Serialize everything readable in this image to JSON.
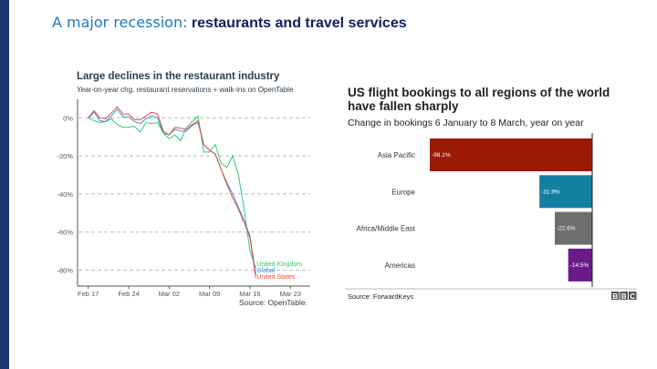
{
  "slide": {
    "title_prefix": "A major recession:",
    "title_main": "restaurants and travel services"
  },
  "chart_data": [
    {
      "type": "line",
      "title": "Large declines in the restaurant industry",
      "subtitle": "Year-on-year chg. restaurant reservations + walk-ins on OpenTable",
      "source": "Source: OpenTable.",
      "x_start": "Feb 17",
      "x_ticks": [
        "Feb 17",
        "Feb 24",
        "Mar 02",
        "Mar 09",
        "Mar 16",
        "Mar 23"
      ],
      "y_ticks": [
        "0%",
        "-20%",
        "-40%",
        "-60%",
        "-80%"
      ],
      "y_tick_values": [
        0,
        -20,
        -40,
        -60,
        -80
      ],
      "ylim": [
        -88,
        8
      ],
      "grid": true,
      "series": [
        {
          "name": "United Kingdom",
          "color": "#2ecc71",
          "values": [
            0,
            -1.5,
            -2.5,
            -2,
            -0.5,
            -3.5,
            -5,
            -5,
            -4.5,
            -7.5,
            -2.5,
            -3,
            -2.5,
            -8,
            -11,
            -9,
            -12,
            -5,
            -2,
            1,
            -18,
            -18,
            -14,
            -24,
            -26,
            -20,
            -30,
            -48,
            -70,
            -79
          ]
        },
        {
          "name": "Global",
          "color": "#3498db",
          "values": [
            -0.5,
            3,
            -1.5,
            -2,
            1,
            4.5,
            0.5,
            0.5,
            -2,
            -3,
            -0.5,
            1,
            0,
            -8,
            -9,
            -6,
            -7,
            -7,
            -4,
            -2.5,
            -14,
            -17,
            -19,
            -27,
            -34,
            -40,
            -47,
            -54,
            -62,
            -82
          ]
        },
        {
          "name": "United States",
          "color": "#e74c3c",
          "values": [
            0,
            3.7,
            0,
            -0.5,
            2.5,
            5.8,
            2,
            2,
            -1,
            -1,
            1,
            3,
            2,
            -7,
            -9,
            -5,
            -5.5,
            -6,
            -3.5,
            -1.5,
            -14,
            -17,
            -19,
            -27,
            -35,
            -42,
            -48,
            -55,
            -63,
            -84
          ]
        }
      ]
    },
    {
      "type": "bar",
      "title_line1": "US flight bookings to all regions of the world",
      "title_line2": "have fallen sharply",
      "subtitle": "Change in bookings 6 January to 8 March, year on year",
      "categories": [
        "Asia Pacific",
        "Europe",
        "Africa/Middle East",
        "Americas"
      ],
      "values": [
        -98.1,
        -31.9,
        -22.6,
        -14.5
      ],
      "value_labels": [
        "-98.1%",
        "-31.9%",
        "-22.6%",
        "-14.5%"
      ],
      "colors": [
        "#9b1a06",
        "#1380a1",
        "#6e6e6e",
        "#6b1a8c"
      ],
      "source": "Source: ForwardKeys",
      "logo": "BBC"
    }
  ]
}
